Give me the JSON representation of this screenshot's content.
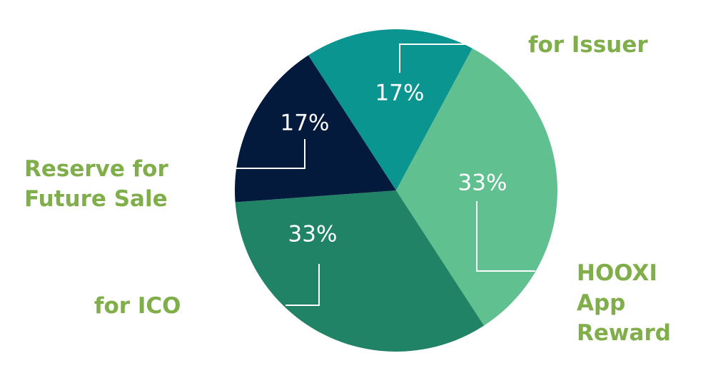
{
  "chart_data": {
    "type": "pie",
    "slices": [
      {
        "name": "for Issuer",
        "value": 17,
        "label": "17%",
        "color": "#0b9590",
        "label_lines": [
          "for Issuer"
        ]
      },
      {
        "name": "HOOXI App Reward",
        "value": 33,
        "label": "33%",
        "color": "#61c08f",
        "label_lines": [
          "HOOXI",
          "App",
          "Reward"
        ]
      },
      {
        "name": "for ICO",
        "value": 33,
        "label": "33%",
        "color": "#218365",
        "label_lines": [
          "for ICO"
        ]
      },
      {
        "name": "Reserve for Future Sale",
        "value": 17,
        "label": "17%",
        "color": "#041a3c",
        "label_lines": [
          "Reserve for",
          "Future Sale"
        ]
      }
    ],
    "start_angle_deg": -33,
    "direction": "clockwise",
    "label_color": "#7fae4a",
    "value_label_color": "#ffffff",
    "leader_color": "#ffffff"
  }
}
